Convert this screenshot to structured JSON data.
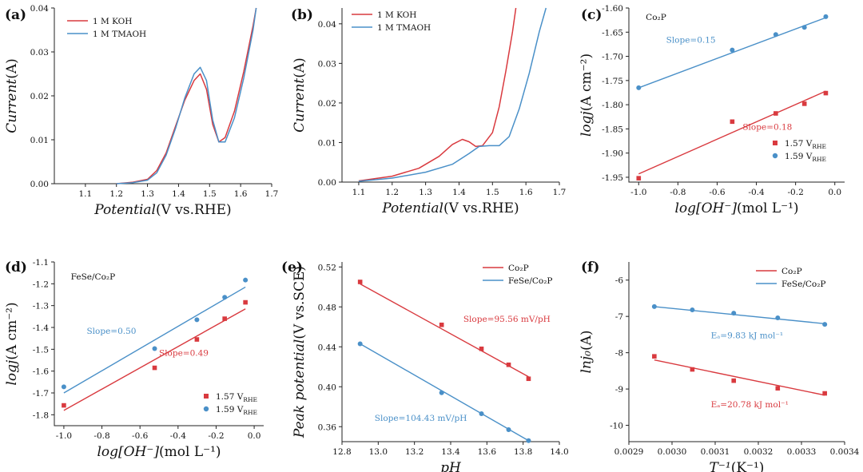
{
  "chart_data": [
    {
      "id": "a",
      "panel_label": "(a)",
      "type": "line",
      "xlabel_italic": "Potential",
      "xlabel_rest": "(V vs.RHE)",
      "ylabel_italic": "Current",
      "ylabel_rest": "(A)",
      "xlim": [
        1.0,
        1.7
      ],
      "ylim": [
        0,
        0.04
      ],
      "xticks": [
        1.1,
        1.2,
        1.3,
        1.4,
        1.5,
        1.6,
        1.7
      ],
      "xtick_labels": [
        "1.1",
        "1.2",
        "1.3",
        "1.4",
        "1.5",
        "1.6",
        "1.7"
      ],
      "yticks": [
        0,
        0.01,
        0.02,
        0.03,
        0.04
      ],
      "ytick_labels": [
        "0.00",
        "0.01",
        "0.02",
        "0.03",
        "0.04"
      ],
      "legend_position": "top-left",
      "series": [
        {
          "name": "1 M KOH",
          "color": "#d93a3f",
          "marker": "none",
          "x": [
            1.2,
            1.25,
            1.3,
            1.33,
            1.36,
            1.39,
            1.42,
            1.45,
            1.47,
            1.49,
            1.51,
            1.53,
            1.55,
            1.58,
            1.61,
            1.64,
            1.65
          ],
          "y": [
            0.0,
            0.0003,
            0.001,
            0.003,
            0.007,
            0.013,
            0.019,
            0.0235,
            0.025,
            0.0215,
            0.0135,
            0.0095,
            0.0105,
            0.0165,
            0.0255,
            0.036,
            0.04
          ]
        },
        {
          "name": "1 M TMAOH",
          "color": "#4a90c8",
          "marker": "none",
          "x": [
            1.2,
            1.25,
            1.3,
            1.33,
            1.36,
            1.39,
            1.42,
            1.45,
            1.47,
            1.49,
            1.51,
            1.53,
            1.55,
            1.58,
            1.61,
            1.64,
            1.65
          ],
          "y": [
            0.0,
            0.0002,
            0.0008,
            0.0025,
            0.0065,
            0.0125,
            0.0195,
            0.025,
            0.0265,
            0.0235,
            0.0145,
            0.0095,
            0.0095,
            0.015,
            0.024,
            0.035,
            0.04
          ]
        }
      ]
    },
    {
      "id": "b",
      "panel_label": "(b)",
      "type": "line",
      "xlabel_italic": "Potential",
      "xlabel_rest": "(V vs.RHE)",
      "ylabel_italic": "Current",
      "ylabel_rest": "(A)",
      "xlim": [
        1.05,
        1.7
      ],
      "ylim": [
        0,
        0.044
      ],
      "xticks": [
        1.1,
        1.2,
        1.3,
        1.4,
        1.5,
        1.6,
        1.7
      ],
      "xtick_labels": [
        "1.1",
        "1.2",
        "1.3",
        "1.4",
        "1.5",
        "1.6",
        "1.7"
      ],
      "yticks": [
        0,
        0.01,
        0.02,
        0.03,
        0.04
      ],
      "ytick_labels": [
        "0.00",
        "0.01",
        "0.02",
        "0.03",
        "0.04"
      ],
      "legend_position": "top-left",
      "series": [
        {
          "name": "1 M KOH",
          "color": "#d93a3f",
          "marker": "none",
          "x": [
            1.1,
            1.2,
            1.28,
            1.34,
            1.38,
            1.41,
            1.43,
            1.45,
            1.47,
            1.5,
            1.52,
            1.54,
            1.56,
            1.57
          ],
          "y": [
            0.0003,
            0.0015,
            0.0035,
            0.0065,
            0.0095,
            0.0108,
            0.0102,
            0.009,
            0.0092,
            0.0125,
            0.019,
            0.028,
            0.038,
            0.044
          ]
        },
        {
          "name": "1 M TMAOH",
          "color": "#4a90c8",
          "marker": "none",
          "x": [
            1.1,
            1.2,
            1.3,
            1.38,
            1.43,
            1.46,
            1.49,
            1.52,
            1.55,
            1.58,
            1.61,
            1.64,
            1.66
          ],
          "y": [
            0.0002,
            0.001,
            0.0025,
            0.0045,
            0.0072,
            0.009,
            0.0092,
            0.0092,
            0.0115,
            0.0185,
            0.0275,
            0.038,
            0.044
          ]
        }
      ]
    },
    {
      "id": "c",
      "panel_label": "(c)",
      "type": "scatter",
      "inner_label": "Co₂P",
      "xlabel_italic": "log[OH⁻]",
      "xlabel_rest": "(mol L⁻¹)",
      "ylabel_italic": "logj",
      "ylabel_rest": "(A cm⁻²)",
      "xlim": [
        -1.05,
        0.05
      ],
      "ylim": [
        -1.96,
        -1.6
      ],
      "xticks": [
        -1.0,
        -0.8,
        -0.6,
        -0.4,
        -0.2,
        0.0
      ],
      "xtick_labels": [
        "-1.0",
        "-0.8",
        "-0.6",
        "-0.4",
        "-0.2",
        "0.0"
      ],
      "yticks": [
        -1.95,
        -1.9,
        -1.85,
        -1.8,
        -1.75,
        -1.7,
        -1.65,
        -1.6
      ],
      "ytick_labels": [
        "-1.95",
        "-1.90",
        "-1.85",
        "-1.80",
        "-1.75",
        "-1.70",
        "-1.65",
        "-1.60"
      ],
      "legend_position": "bottom-right",
      "series": [
        {
          "name": "1.57 V",
          "name_sub": "RHE",
          "color": "#d93a3f",
          "marker": "square",
          "x": [
            -1.0,
            -0.523,
            -0.301,
            -0.155,
            -0.046
          ],
          "y": [
            -1.952,
            -1.835,
            -1.818,
            -1.798,
            -1.776
          ],
          "fit": [
            [
              -1.0,
              -1.943
            ],
            [
              -0.046,
              -1.772
            ]
          ],
          "slope_label": "Slope=0.18"
        },
        {
          "name": "1.59 V",
          "name_sub": "RHE",
          "color": "#4a90c8",
          "marker": "circle",
          "x": [
            -1.0,
            -0.523,
            -0.301,
            -0.155,
            -0.046
          ],
          "y": [
            -1.765,
            -1.687,
            -1.655,
            -1.64,
            -1.618
          ],
          "fit": [
            [
              -1.0,
              -1.765
            ],
            [
              -0.046,
              -1.62
            ]
          ],
          "slope_label": "Slope=0.15"
        }
      ]
    },
    {
      "id": "d",
      "panel_label": "(d)",
      "type": "scatter",
      "inner_label": "FeSe/Co₂P",
      "xlabel_italic": "log[OH⁻]",
      "xlabel_rest": "(mol L⁻¹)",
      "ylabel_italic": "logj",
      "ylabel_rest": "(A cm⁻²)",
      "xlim": [
        -1.05,
        0.05
      ],
      "ylim": [
        -1.85,
        -1.1
      ],
      "xticks": [
        -1.0,
        -0.8,
        -0.6,
        -0.4,
        -0.2,
        0.0
      ],
      "xtick_labels": [
        "-1.0",
        "-0.8",
        "-0.6",
        "-0.4",
        "-0.2",
        "0.0"
      ],
      "yticks": [
        -1.8,
        -1.7,
        -1.6,
        -1.5,
        -1.4,
        -1.3,
        -1.2,
        -1.1
      ],
      "ytick_labels": [
        "-1.8",
        "-1.7",
        "-1.6",
        "-1.5",
        "-1.4",
        "-1.3",
        "-1.2",
        "-1.1"
      ],
      "legend_position": "bottom-right",
      "series": [
        {
          "name": "1.57 V",
          "name_sub": "RHE",
          "color": "#d93a3f",
          "marker": "square",
          "x": [
            -1.0,
            -0.523,
            -0.301,
            -0.155,
            -0.046
          ],
          "y": [
            -1.757,
            -1.585,
            -1.455,
            -1.36,
            -1.285
          ],
          "fit": [
            [
              -1.0,
              -1.78
            ],
            [
              -0.046,
              -1.315
            ]
          ],
          "slope_label": "Slope=0.49"
        },
        {
          "name": "1.59 V",
          "name_sub": "RHE",
          "color": "#4a90c8",
          "marker": "circle",
          "x": [
            -1.0,
            -0.523,
            -0.301,
            -0.155,
            -0.046
          ],
          "y": [
            -1.672,
            -1.497,
            -1.365,
            -1.262,
            -1.183
          ],
          "fit": [
            [
              -1.0,
              -1.7
            ],
            [
              -0.046,
              -1.215
            ]
          ],
          "slope_label": "Slope=0.50"
        }
      ]
    },
    {
      "id": "e",
      "panel_label": "(e)",
      "type": "scatter",
      "xlabel_italic": "pH",
      "xlabel_rest": "",
      "ylabel_italic": "Peak potential",
      "ylabel_rest": "(V vs.SCE)",
      "xlim": [
        12.8,
        14.0
      ],
      "ylim": [
        0.345,
        0.525
      ],
      "xticks": [
        12.8,
        13.0,
        13.2,
        13.4,
        13.6,
        13.8,
        14.0
      ],
      "xtick_labels": [
        "12.8",
        "13.0",
        "13.2",
        "13.4",
        "13.6",
        "13.8",
        "14.0"
      ],
      "yticks": [
        0.36,
        0.4,
        0.44,
        0.48,
        0.52
      ],
      "ytick_labels": [
        "0.36",
        "0.40",
        "0.44",
        "0.48",
        "0.52"
      ],
      "legend_position": "top-right",
      "series": [
        {
          "name": "Co₂P",
          "color": "#d93a3f",
          "marker": "square",
          "x": [
            12.9,
            13.35,
            13.57,
            13.72,
            13.83
          ],
          "y": [
            0.505,
            0.462,
            0.438,
            0.422,
            0.408
          ],
          "fit": [
            [
              12.9,
              0.503
            ],
            [
              13.83,
              0.41
            ]
          ],
          "slope_label": "Slope=95.56 mV/pH"
        },
        {
          "name": "FeSe/Co₂P",
          "color": "#4a90c8",
          "marker": "circle",
          "x": [
            12.9,
            13.35,
            13.57,
            13.72,
            13.83
          ],
          "y": [
            0.443,
            0.394,
            0.373,
            0.357,
            0.346
          ],
          "fit": [
            [
              12.9,
              0.443
            ],
            [
              13.83,
              0.346
            ]
          ],
          "slope_label": "Slope=104.43 mV/pH"
        }
      ]
    },
    {
      "id": "f",
      "panel_label": "(f)",
      "type": "scatter",
      "xlabel_italic": "T⁻¹",
      "xlabel_rest": "(K⁻¹)",
      "ylabel_italic": "lnj₀",
      "ylabel_rest": "(A)",
      "xlim": [
        0.0029,
        0.0034
      ],
      "ylim": [
        -10.45,
        -5.5
      ],
      "xticks": [
        0.0029,
        0.003,
        0.0031,
        0.0032,
        0.0033,
        0.0034
      ],
      "xtick_labels": [
        "0.0029",
        "0.0030",
        "0.0031",
        "0.0032",
        "0.0033",
        "0.0034"
      ],
      "yticks": [
        -10,
        -9,
        -8,
        -7,
        -6
      ],
      "ytick_labels": [
        "-10",
        "-9",
        "-8",
        "-7",
        "-6"
      ],
      "legend_position": "top-right",
      "series": [
        {
          "name": "Co₂P",
          "color": "#d93a3f",
          "marker": "square",
          "x": [
            0.002959,
            0.003047,
            0.003143,
            0.003245,
            0.003354
          ],
          "y": [
            -8.1,
            -8.46,
            -8.77,
            -8.98,
            -9.12
          ],
          "fit": [
            [
              0.002959,
              -8.2
            ],
            [
              0.003354,
              -9.17
            ]
          ],
          "slope_label": "Eₐ=20.78 kJ mol⁻¹"
        },
        {
          "name": "FeSe/Co₂P",
          "color": "#4a90c8",
          "marker": "circle",
          "x": [
            0.002959,
            0.003047,
            0.003143,
            0.003245,
            0.003354
          ],
          "y": [
            -6.73,
            -6.82,
            -6.91,
            -7.04,
            -7.22
          ],
          "fit": [
            [
              0.002959,
              -6.73
            ],
            [
              0.003354,
              -7.2
            ]
          ],
          "slope_label": "Eₐ=9.83 kJ mol⁻¹"
        }
      ]
    }
  ]
}
